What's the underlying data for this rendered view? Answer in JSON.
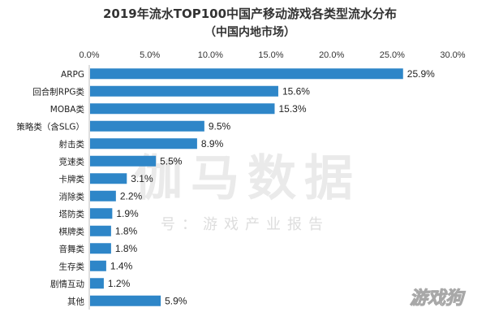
{
  "chart_data": {
    "type": "bar",
    "orientation": "horizontal",
    "title": "2019年流水TOP100中国产移动游戏各类型流水分布",
    "subtitle": "（中国内地市场）",
    "categories": [
      "ARPG",
      "回合制RPG类",
      "MOBA类",
      "策略类（含SLG）",
      "射击类",
      "竞速类",
      "卡牌类",
      "消除类",
      "塔防类",
      "棋牌类",
      "音舞类",
      "生存类",
      "剧情互动",
      "其他"
    ],
    "values": [
      25.9,
      15.6,
      15.3,
      9.5,
      8.9,
      5.5,
      3.1,
      2.2,
      1.9,
      1.8,
      1.8,
      1.4,
      1.2,
      5.9
    ],
    "value_labels": [
      "25.9%",
      "15.6%",
      "15.3%",
      "9.5%",
      "8.9%",
      "5.5%",
      "3.1%",
      "2.2%",
      "1.9%",
      "1.8%",
      "1.8%",
      "1.4%",
      "1.2%",
      "5.9%"
    ],
    "xlim": [
      0,
      30
    ],
    "x_ticks": [
      0,
      5,
      10,
      15,
      20,
      25,
      30
    ],
    "x_tick_labels": [
      "0.0%",
      "5.0%",
      "10.0%",
      "15.0%",
      "20.0%",
      "25.0%",
      "30.0%"
    ],
    "axis_position": "top",
    "grid": false,
    "bar_color": "#2e86c8"
  },
  "watermarks": {
    "main": "伽马数据",
    "sub": "号：游戏产业报告",
    "logo": "游戏狗"
  }
}
